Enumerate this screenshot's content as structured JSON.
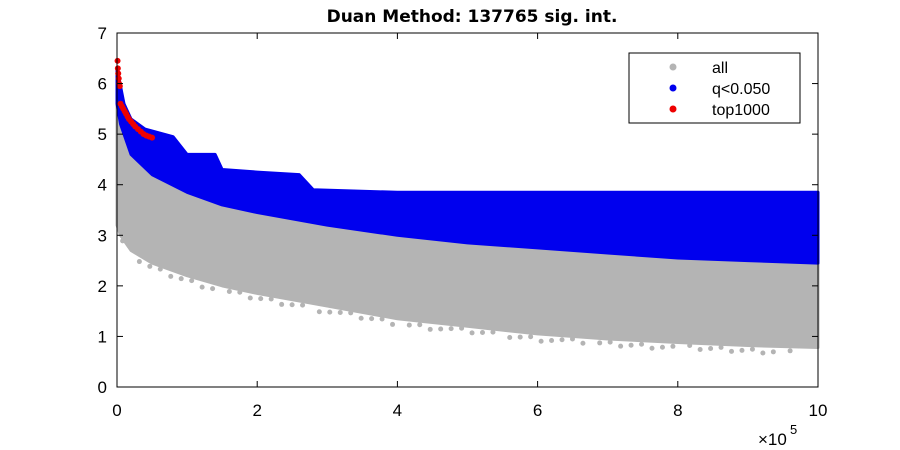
{
  "chart_data": {
    "type": "scatter",
    "title": "Duan Method: 137765 sig. int.",
    "xlabel": "",
    "ylabel": "",
    "xlim": [
      0,
      1000000
    ],
    "ylim": [
      0,
      7
    ],
    "x_multiplier_label": "×10",
    "x_multiplier_exponent": "5",
    "x_ticks": [
      0,
      200000,
      400000,
      600000,
      800000,
      1000000
    ],
    "x_tick_labels": [
      "0",
      "2",
      "4",
      "6",
      "8",
      "10"
    ],
    "y_ticks": [
      0,
      1,
      2,
      3,
      4,
      5,
      6,
      7
    ],
    "y_tick_labels": [
      "0",
      "1",
      "2",
      "3",
      "4",
      "5",
      "6",
      "7"
    ],
    "grid": false,
    "legend_position": "top-right",
    "series": [
      {
        "name": "all",
        "color": "#b4b4b4",
        "lower_envelope": [
          [
            0,
            3.2
          ],
          [
            5000,
            3.0
          ],
          [
            20000,
            2.7
          ],
          [
            50000,
            2.45
          ],
          [
            100000,
            2.2
          ],
          [
            150000,
            2.0
          ],
          [
            200000,
            1.85
          ],
          [
            300000,
            1.6
          ],
          [
            400000,
            1.35
          ],
          [
            500000,
            1.2
          ],
          [
            600000,
            1.05
          ],
          [
            700000,
            0.95
          ],
          [
            800000,
            0.88
          ],
          [
            900000,
            0.82
          ],
          [
            1000000,
            0.78
          ]
        ],
        "upper_envelope": [
          [
            0,
            5.6
          ],
          [
            5000,
            5.2
          ],
          [
            20000,
            4.6
          ],
          [
            50000,
            4.2
          ],
          [
            100000,
            3.85
          ],
          [
            150000,
            3.6
          ],
          [
            200000,
            3.45
          ],
          [
            300000,
            3.2
          ],
          [
            400000,
            3.0
          ],
          [
            500000,
            2.85
          ],
          [
            600000,
            2.75
          ],
          [
            700000,
            2.65
          ],
          [
            800000,
            2.55
          ],
          [
            900000,
            2.5
          ],
          [
            1000000,
            2.45
          ]
        ]
      },
      {
        "name": "q<0.050",
        "color": "#0000ee",
        "lower_envelope": [
          [
            0,
            5.6
          ],
          [
            5000,
            5.2
          ],
          [
            20000,
            4.6
          ],
          [
            50000,
            4.2
          ],
          [
            100000,
            3.85
          ],
          [
            150000,
            3.6
          ],
          [
            200000,
            3.45
          ],
          [
            300000,
            3.2
          ],
          [
            400000,
            3.0
          ],
          [
            500000,
            2.85
          ],
          [
            600000,
            2.75
          ],
          [
            700000,
            2.65
          ],
          [
            800000,
            2.55
          ],
          [
            900000,
            2.5
          ],
          [
            1000000,
            2.45
          ]
        ],
        "upper_envelope": [
          [
            0,
            6.3
          ],
          [
            10000,
            5.6
          ],
          [
            20000,
            5.3
          ],
          [
            40000,
            5.1
          ],
          [
            80000,
            4.95
          ],
          [
            100000,
            4.6
          ],
          [
            140000,
            4.6
          ],
          [
            150000,
            4.3
          ],
          [
            200000,
            4.25
          ],
          [
            260000,
            4.2
          ],
          [
            280000,
            3.9
          ],
          [
            400000,
            3.85
          ],
          [
            600000,
            3.85
          ],
          [
            1000000,
            3.85
          ]
        ]
      },
      {
        "name": "top1000",
        "color": "#ee0000",
        "points": [
          [
            800,
            6.45
          ],
          [
            1200,
            6.3
          ],
          [
            1800,
            6.2
          ],
          [
            2500,
            6.1
          ],
          [
            3000,
            6.0
          ],
          [
            4000,
            5.95
          ],
          [
            5000,
            5.6
          ],
          [
            7000,
            5.55
          ],
          [
            9000,
            5.5
          ],
          [
            11000,
            5.45
          ],
          [
            13000,
            5.4
          ],
          [
            15000,
            5.35
          ],
          [
            17000,
            5.3
          ],
          [
            20000,
            5.25
          ],
          [
            23000,
            5.2
          ],
          [
            26000,
            5.15
          ],
          [
            30000,
            5.1
          ],
          [
            34000,
            5.05
          ],
          [
            38000,
            5.0
          ],
          [
            42000,
            4.97
          ],
          [
            46000,
            4.95
          ],
          [
            50000,
            4.93
          ]
        ]
      }
    ]
  }
}
